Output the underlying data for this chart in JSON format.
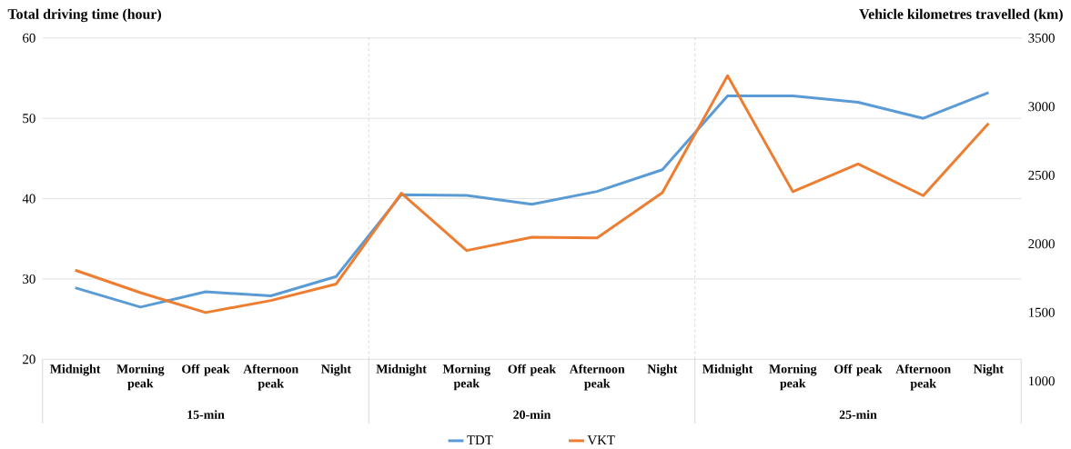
{
  "chart_data": {
    "type": "line",
    "ylabel": "Total driving time (hour)",
    "y2label": "Vehicle kilometres travelled (km)",
    "categories": [
      "Midnight",
      "Morning peak",
      "Off peak",
      "Afternoon peak",
      "Night",
      "Midnight",
      "Morning peak",
      "Off peak",
      "Afternoon peak",
      "Night",
      "Midnight",
      "Morning peak",
      "Off peak",
      "Afternoon peak",
      "Night"
    ],
    "series": [
      {
        "name": "TDT",
        "color": "#5b9bd5",
        "values": [
          28.9,
          26.5,
          28.4,
          27.9,
          30.3,
          40.5,
          40.4,
          39.3,
          40.9,
          43.6,
          52.8,
          52.8,
          52.0,
          50.0,
          53.2
        ]
      },
      {
        "name": "VKT",
        "color": "#ed7d31",
        "axis": "y2",
        "values": [
          1808,
          1644,
          1499,
          1587,
          1707,
          2369,
          1951,
          2048,
          2043,
          2373,
          3225,
          2380,
          2582,
          2351,
          2878
        ]
      }
    ],
    "ylim": [
      20,
      60
    ],
    "yticks": [
      20,
      30,
      40,
      50,
      60
    ],
    "y2lim": [
      1000,
      3500
    ],
    "y2ticks": [
      1000,
      1500,
      2000,
      2500,
      3000,
      3500
    ],
    "annotations": [
      "15-min",
      "20-min",
      "25-min"
    ],
    "grid": "y",
    "legend": "bottom"
  }
}
